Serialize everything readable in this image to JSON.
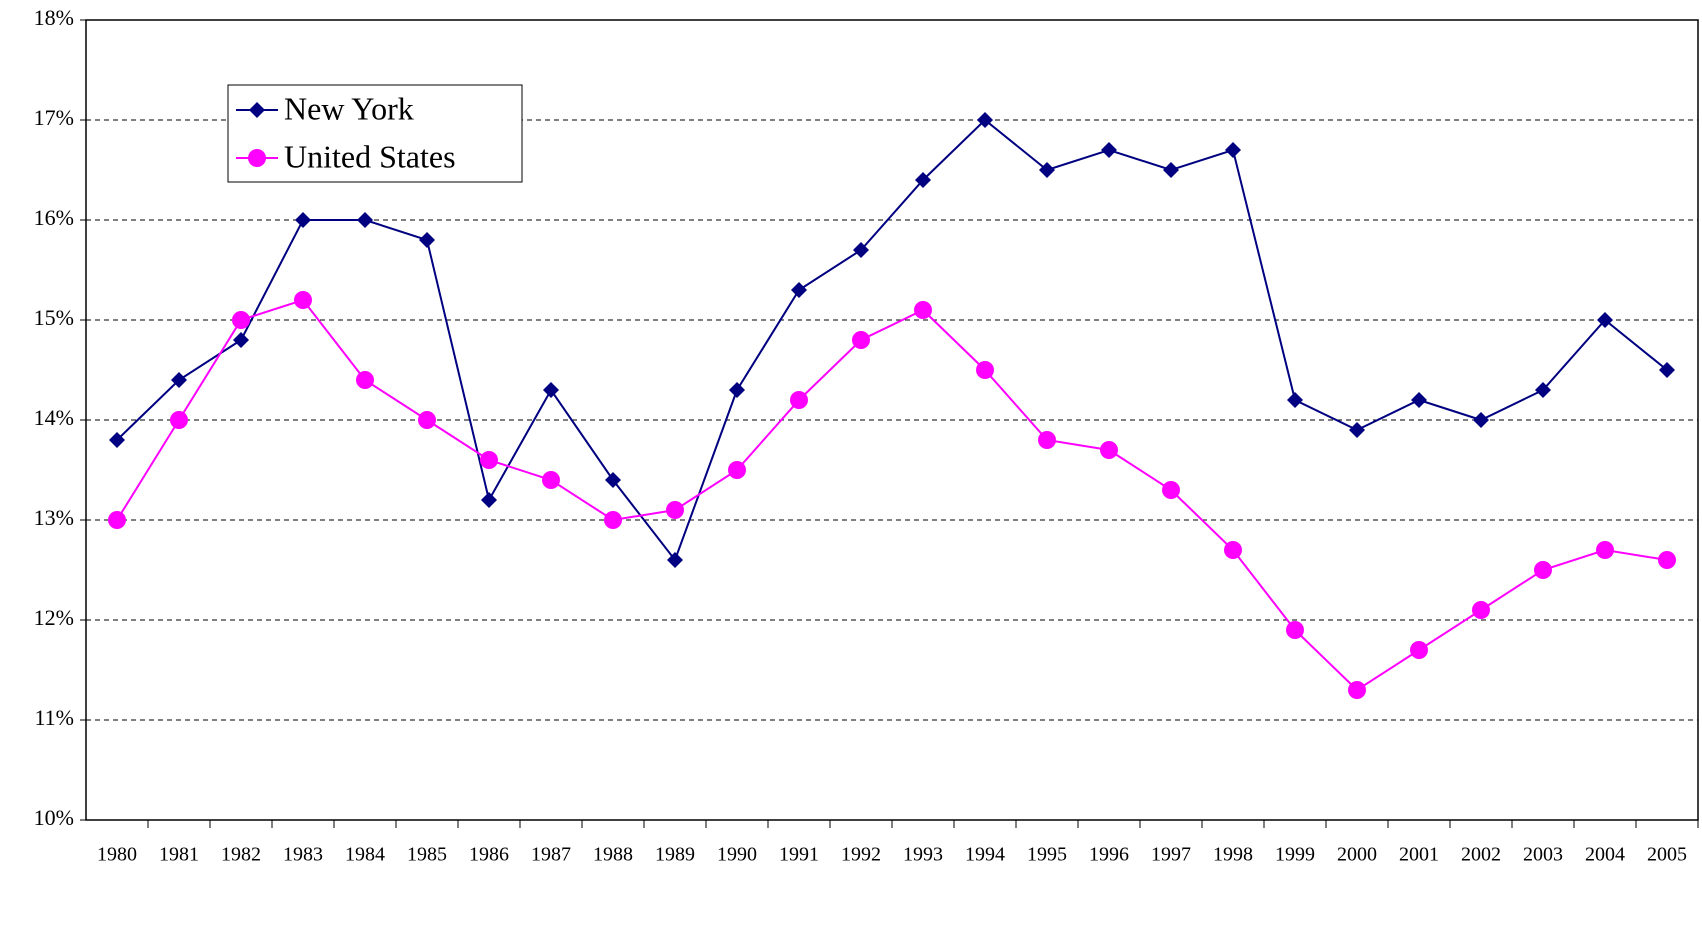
{
  "chart_data": {
    "type": "line",
    "categories": [
      "1980",
      "1981",
      "1982",
      "1983",
      "1984",
      "1985",
      "1986",
      "1987",
      "1988",
      "1989",
      "1990",
      "1991",
      "1992",
      "1993",
      "1994",
      "1995",
      "1996",
      "1997",
      "1998",
      "1999",
      "2000",
      "2001",
      "2002",
      "2003",
      "2004",
      "2005"
    ],
    "series": [
      {
        "name": "New York",
        "color": "#000080",
        "marker": "diamond",
        "values": [
          13.8,
          14.4,
          14.8,
          16,
          16,
          15.8,
          13.2,
          14.3,
          13.4,
          12.6,
          14.3,
          15.3,
          15.7,
          16.4,
          17,
          16.5,
          16.7,
          16.5,
          16.7,
          14.2,
          13.9,
          14.2,
          14.0,
          14.3,
          15.0,
          14.5
        ]
      },
      {
        "name": "United States",
        "color": "#ff00ff",
        "marker": "circle",
        "values": [
          13.0,
          14.0,
          15.0,
          15.2,
          14.4,
          14.0,
          13.6,
          13.4,
          13.0,
          13.1,
          13.5,
          14.2,
          14.8,
          15.1,
          14.5,
          13.8,
          13.7,
          13.3,
          12.7,
          11.9,
          11.3,
          11.7,
          12.1,
          12.5,
          12.7,
          12.6
        ]
      }
    ],
    "ylim": [
      10,
      18
    ],
    "yticks": [
      {
        "value": 10,
        "label": "10%"
      },
      {
        "value": 11,
        "label": "11%"
      },
      {
        "value": 12,
        "label": "12%"
      },
      {
        "value": 13,
        "label": "13%"
      },
      {
        "value": 14,
        "label": "14%"
      },
      {
        "value": 15,
        "label": "15%"
      },
      {
        "value": 16,
        "label": "16%"
      },
      {
        "value": 17,
        "label": "17%"
      },
      {
        "value": 18,
        "label": "18%"
      }
    ],
    "grid": true,
    "legend": "top-left"
  }
}
